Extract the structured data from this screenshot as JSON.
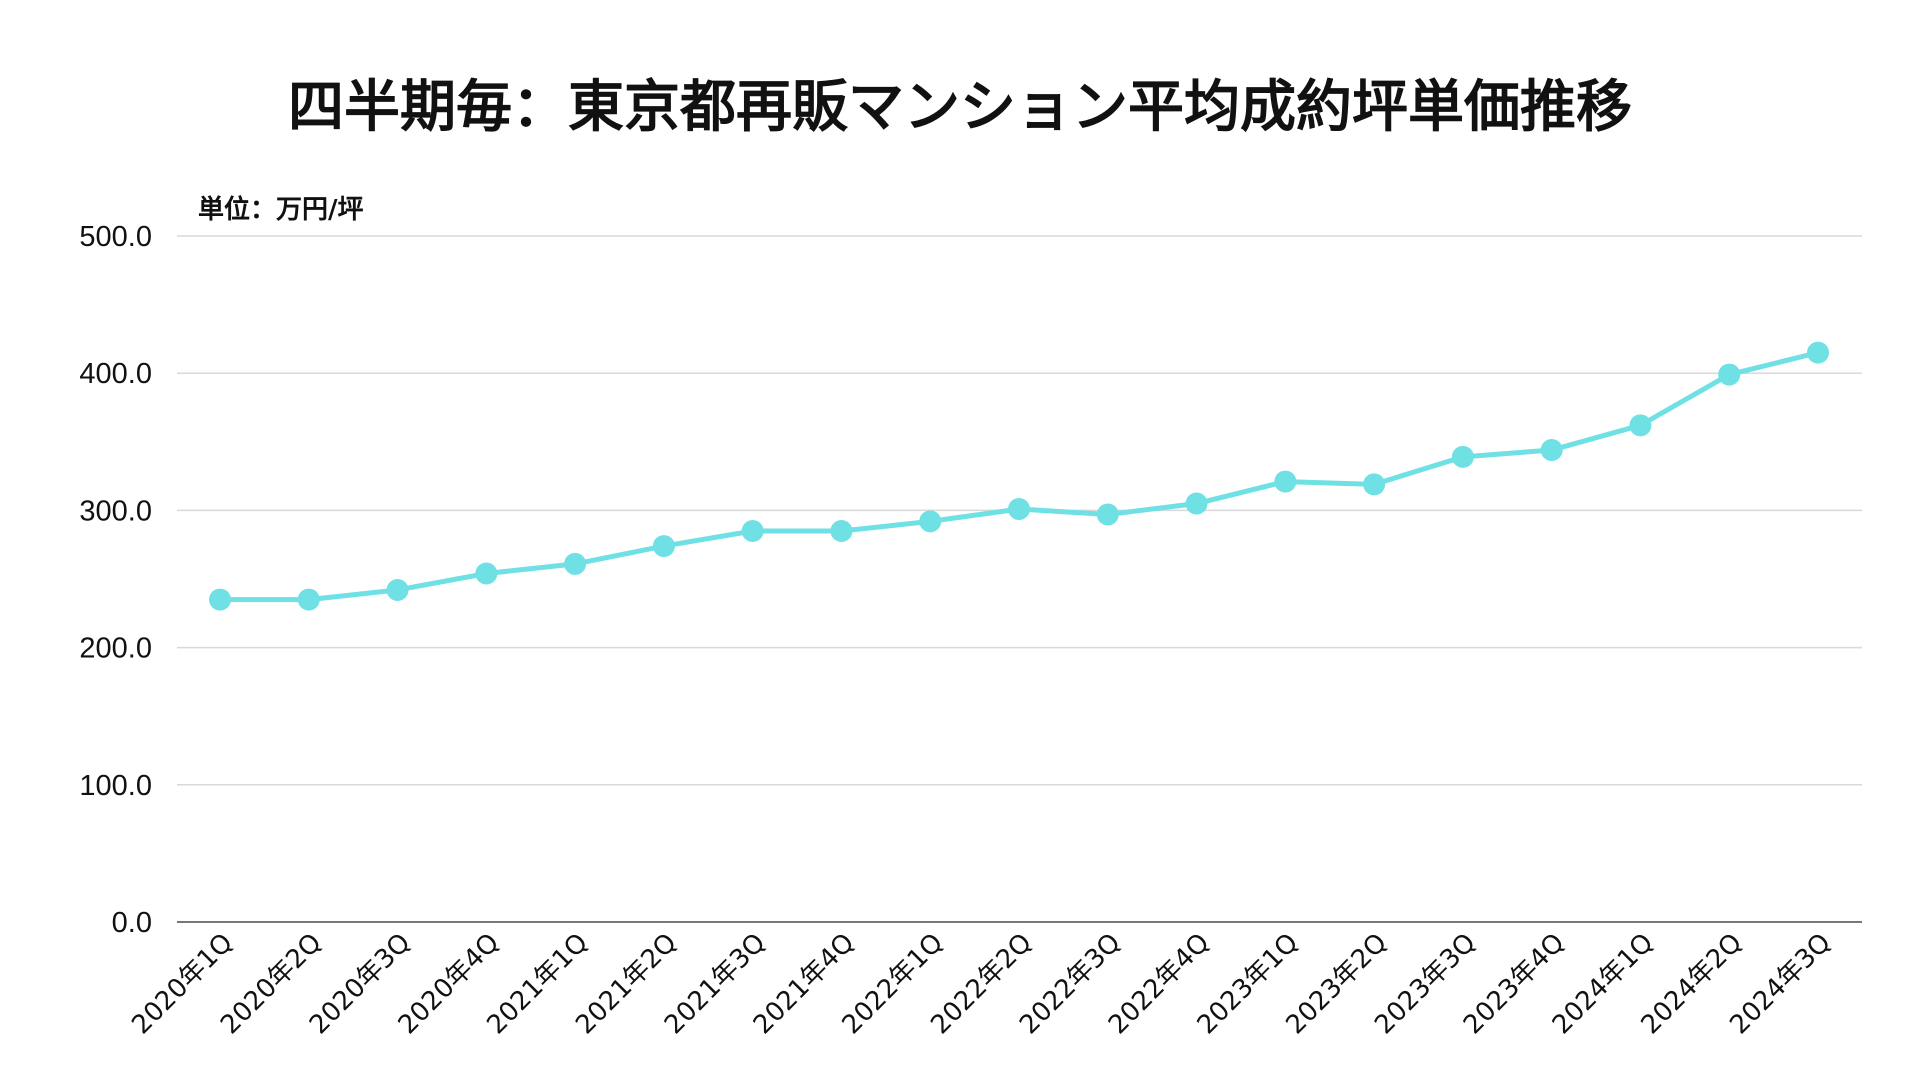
{
  "chart_data": {
    "type": "line",
    "title": "四半期毎：東京都再販マンション平均成約坪単価推移",
    "unit_label": "単位：万円/坪",
    "xlabel": "",
    "ylabel": "",
    "ylim": [
      0,
      500
    ],
    "yticks": [
      "0.0",
      "100.0",
      "200.0",
      "300.0",
      "400.0",
      "500.0"
    ],
    "grid": true,
    "legend": "none",
    "line_color": "#6fe0e3",
    "categories": [
      "2020年1Q",
      "2020年2Q",
      "2020年3Q",
      "2020年4Q",
      "2021年1Q",
      "2021年2Q",
      "2021年3Q",
      "2021年4Q",
      "2022年1Q",
      "2022年2Q",
      "2022年3Q",
      "2022年4Q",
      "2023年1Q",
      "2023年2Q",
      "2023年3Q",
      "2023年4Q",
      "2024年1Q",
      "2024年2Q",
      "2024年3Q"
    ],
    "series": [
      {
        "values": [
          235,
          235,
          242,
          254,
          261,
          274,
          285,
          285,
          292,
          301,
          297,
          305,
          321,
          319,
          339,
          344,
          362,
          399,
          415
        ]
      }
    ]
  }
}
